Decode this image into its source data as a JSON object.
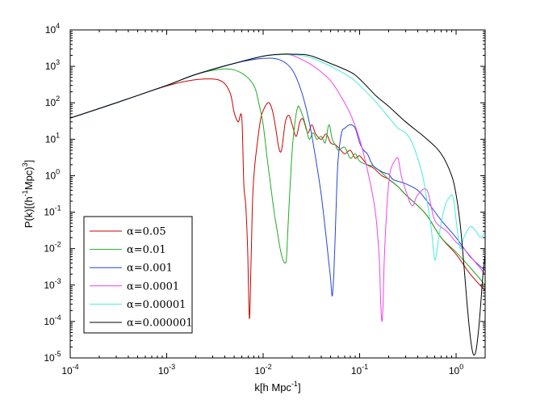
{
  "chart_data": {
    "type": "line",
    "title": "",
    "x_scale": "log",
    "y_scale": "log",
    "xlim": [
      0.0001,
      2
    ],
    "ylim": [
      1e-05,
      10000
    ],
    "xlabel": {
      "main": "k[h Mpc",
      "sup": "-1",
      "tail": "]"
    },
    "ylabel": {
      "p1": "P(k)[(h",
      "s1": "-1",
      "p2": "Mpc)",
      "s2": "3",
      "p3": "]"
    },
    "x_ticks": [
      {
        "value": 0.0001,
        "base": "10",
        "exp": "-4"
      },
      {
        "value": 0.001,
        "base": "10",
        "exp": "-3"
      },
      {
        "value": 0.01,
        "base": "10",
        "exp": "-2"
      },
      {
        "value": 0.1,
        "base": "10",
        "exp": "-1"
      },
      {
        "value": 1,
        "base": "10",
        "exp": "0"
      }
    ],
    "y_ticks": [
      {
        "value": 1e-05,
        "base": "10",
        "exp": "-5"
      },
      {
        "value": 0.0001,
        "base": "10",
        "exp": "-4"
      },
      {
        "value": 0.001,
        "base": "10",
        "exp": "-3"
      },
      {
        "value": 0.01,
        "base": "10",
        "exp": "-2"
      },
      {
        "value": 0.1,
        "base": "10",
        "exp": "-1"
      },
      {
        "value": 1,
        "base": "10",
        "exp": "0"
      },
      {
        "value": 10,
        "base": "10",
        "exp": "1"
      },
      {
        "value": 100,
        "base": "10",
        "exp": "2"
      },
      {
        "value": 1000,
        "base": "10",
        "exp": "3"
      },
      {
        "value": 10000,
        "base": "10",
        "exp": "4"
      }
    ],
    "legend_position": "lower-left",
    "series": [
      {
        "name": "α=0.05",
        "color": "#cc0000",
        "x": [
          0.0001,
          0.0003,
          0.001,
          0.002,
          0.0035,
          0.0045,
          0.005,
          0.0055,
          0.006,
          0.0063,
          0.0066,
          0.0069,
          0.0072,
          0.0075,
          0.0078,
          0.0082,
          0.0088,
          0.0095,
          0.0105,
          0.0115,
          0.0125,
          0.0135,
          0.0145,
          0.0155,
          0.017,
          0.0185,
          0.02,
          0.022,
          0.024,
          0.026,
          0.029,
          0.032,
          0.035,
          0.04,
          0.045,
          0.05,
          0.056,
          0.06,
          0.07,
          0.08,
          0.09,
          0.1,
          0.12,
          0.14,
          0.17,
          0.2,
          0.25,
          0.3,
          0.4,
          0.5,
          0.7,
          1.0,
          1.4,
          2.0
        ],
        "y": [
          38,
          100,
          290,
          430,
          420,
          200,
          55,
          30,
          40,
          0.6,
          0.15,
          0.01,
          0.00012,
          0.005,
          0.3,
          2,
          10,
          40,
          80,
          100,
          60,
          20,
          6,
          5,
          30,
          45,
          25,
          12,
          30,
          35,
          15,
          25,
          14,
          10,
          14,
          8,
          7,
          6,
          4,
          5,
          3,
          3.5,
          2,
          1.6,
          1,
          0.8,
          0.5,
          0.3,
          0.15,
          0.08,
          0.02,
          0.007,
          0.002,
          0.0007
        ]
      },
      {
        "name": "α=0.01",
        "color": "#22aa22",
        "x": [
          0.0001,
          0.0003,
          0.001,
          0.002,
          0.004,
          0.006,
          0.008,
          0.009,
          0.01,
          0.011,
          0.012,
          0.013,
          0.014,
          0.015,
          0.016,
          0.017,
          0.0175,
          0.018,
          0.019,
          0.02,
          0.021,
          0.022,
          0.023,
          0.024,
          0.026,
          0.028,
          0.03,
          0.033,
          0.036,
          0.04,
          0.044,
          0.048,
          0.052,
          0.056,
          0.06,
          0.07,
          0.08,
          0.09,
          0.1,
          0.12,
          0.14,
          0.17,
          0.2,
          0.25,
          0.3,
          0.4,
          0.5,
          0.7,
          1.0,
          1.4,
          2.0
        ],
        "y": [
          38,
          100,
          300,
          600,
          850,
          650,
          300,
          100,
          25,
          3,
          0.5,
          0.1,
          0.03,
          0.01,
          0.005,
          0.004,
          0.006,
          0.03,
          0.5,
          5,
          20,
          50,
          80,
          70,
          40,
          20,
          10,
          15,
          10,
          12,
          8,
          25,
          10,
          7,
          5,
          6,
          3,
          4,
          2.5,
          2,
          1.8,
          1.2,
          0.8,
          0.5,
          0.3,
          0.15,
          0.08,
          0.02,
          0.008,
          0.003,
          0.001
        ]
      },
      {
        "name": "α=0.001",
        "color": "#2244dd",
        "x": [
          0.0001,
          0.0003,
          0.001,
          0.002,
          0.005,
          0.01,
          0.015,
          0.02,
          0.025,
          0.03,
          0.035,
          0.04,
          0.045,
          0.048,
          0.05,
          0.052,
          0.054,
          0.056,
          0.058,
          0.06,
          0.065,
          0.07,
          0.08,
          0.09,
          0.1,
          0.11,
          0.12,
          0.13,
          0.14,
          0.16,
          0.18,
          0.2,
          0.22,
          0.25,
          0.3,
          0.4,
          0.5,
          0.7,
          1.0,
          1.4,
          2.0
        ],
        "y": [
          38,
          100,
          300,
          600,
          1200,
          1650,
          1500,
          800,
          200,
          30,
          3,
          0.3,
          0.02,
          0.004,
          0.0015,
          0.0005,
          0.002,
          0.03,
          0.5,
          3,
          15,
          20,
          25,
          20,
          8,
          5,
          4,
          2.5,
          1.8,
          1.4,
          1.2,
          1.1,
          0.8,
          0.7,
          0.6,
          0.4,
          0.2,
          0.06,
          0.02,
          0.006,
          0.0025
        ]
      },
      {
        "name": "α=0.0001",
        "color": "#ee44ee",
        "x": [
          0.0001,
          0.0003,
          0.001,
          0.002,
          0.005,
          0.01,
          0.015,
          0.02,
          0.03,
          0.04,
          0.05,
          0.06,
          0.08,
          0.1,
          0.12,
          0.14,
          0.15,
          0.16,
          0.165,
          0.17,
          0.175,
          0.18,
          0.19,
          0.2,
          0.21,
          0.23,
          0.25,
          0.27,
          0.3,
          0.35,
          0.4,
          0.5,
          0.6,
          0.8,
          1.0,
          1.2,
          1.5,
          2.0
        ],
        "y": [
          38,
          100,
          300,
          600,
          1200,
          1900,
          2100,
          2000,
          1200,
          700,
          400,
          200,
          50,
          10,
          1.5,
          0.2,
          0.05,
          0.005,
          0.0004,
          0.0001,
          0.0003,
          0.005,
          0.1,
          0.6,
          1.5,
          2.5,
          3,
          1,
          0.4,
          0.15,
          0.3,
          0.4,
          0.06,
          0.03,
          0.015,
          0.01,
          0.005,
          0.002
        ]
      },
      {
        "name": "α=0.00001",
        "color": "#44eedd",
        "x": [
          0.0001,
          0.0003,
          0.001,
          0.002,
          0.005,
          0.01,
          0.015,
          0.02,
          0.03,
          0.05,
          0.08,
          0.1,
          0.15,
          0.2,
          0.25,
          0.3,
          0.35,
          0.4,
          0.45,
          0.5,
          0.55,
          0.58,
          0.6,
          0.62,
          0.65,
          0.7,
          0.75,
          0.8,
          0.85,
          0.9,
          0.95,
          1.0,
          1.1,
          1.2,
          1.4,
          1.6,
          1.8,
          2.0
        ],
        "y": [
          38,
          100,
          300,
          600,
          1200,
          1900,
          2100,
          2100,
          1800,
          1000,
          500,
          300,
          100,
          40,
          20,
          15,
          8,
          3,
          1,
          0.2,
          0.04,
          0.01,
          0.005,
          0.006,
          0.015,
          0.05,
          0.12,
          0.2,
          0.25,
          0.3,
          0.2,
          0.06,
          0.01,
          0.02,
          0.04,
          0.03,
          0.02,
          0.03
        ]
      },
      {
        "name": "α=0.000001",
        "color": "#000000",
        "x": [
          0.0001,
          0.0003,
          0.001,
          0.002,
          0.005,
          0.01,
          0.015,
          0.02,
          0.03,
          0.05,
          0.08,
          0.1,
          0.15,
          0.2,
          0.3,
          0.5,
          0.7,
          0.9,
          1.0,
          1.1,
          1.2,
          1.3,
          1.4,
          1.5,
          1.6,
          1.7,
          1.8,
          1.9,
          2.0
        ],
        "y": [
          38,
          100,
          300,
          600,
          1200,
          1900,
          2150,
          2150,
          2000,
          1200,
          700,
          450,
          150,
          80,
          30,
          10,
          4,
          1,
          0.3,
          0.05,
          0.004,
          0.0003,
          4e-05,
          1.3e-05,
          1.5e-05,
          5e-05,
          0.0003,
          0.002,
          0.007
        ]
      }
    ]
  }
}
